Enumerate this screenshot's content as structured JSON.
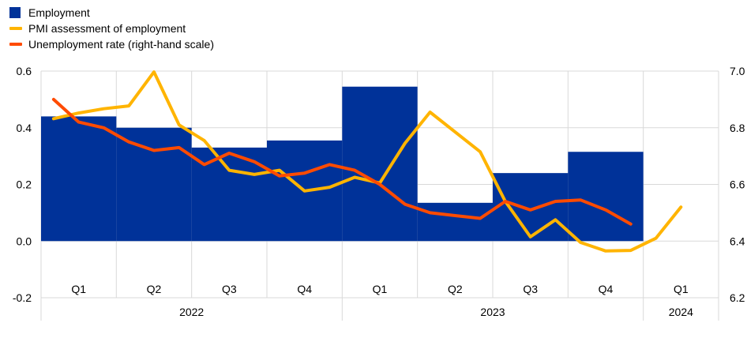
{
  "chart_data": {
    "type": "bar",
    "legend": {
      "placement": "top-left",
      "items": [
        "Employment",
        "PMI assessment of employment",
        "Unemployment rate (right-hand scale)"
      ]
    },
    "periods": [
      "Q1",
      "Q2",
      "Q3",
      "Q4",
      "Q1",
      "Q2",
      "Q3",
      "Q4",
      "Q1"
    ],
    "years": [
      {
        "label": "2022",
        "quarters": 4
      },
      {
        "label": "2023",
        "quarters": 4
      },
      {
        "label": "2024",
        "quarters": 1
      }
    ],
    "left_axis": {
      "ylim": [
        -0.2,
        0.6
      ],
      "ticks": [
        "-0.2",
        "0.0",
        "0.2",
        "0.4",
        "0.6"
      ]
    },
    "right_axis": {
      "ylim": [
        6.2,
        7.0
      ],
      "ticks": [
        "6.2",
        "6.4",
        "6.6",
        "6.8",
        "7.0"
      ]
    },
    "grid": true,
    "series": [
      {
        "name": "Employment",
        "kind": "bar",
        "axis": "left",
        "color": "#003299",
        "x": [
          "2022-Q1",
          "2022-Q2",
          "2022-Q3",
          "2022-Q4",
          "2023-Q1",
          "2023-Q2",
          "2023-Q3",
          "2023-Q4"
        ],
        "values": [
          0.44,
          0.4,
          0.33,
          0.355,
          0.545,
          0.135,
          0.24,
          0.315
        ]
      },
      {
        "name": "PMI assessment of employment",
        "kind": "line",
        "axis": "left",
        "color": "#FFB400",
        "x": [
          "2022-01",
          "2022-02",
          "2022-03",
          "2022-04",
          "2022-05",
          "2022-06",
          "2022-07",
          "2022-08",
          "2022-09",
          "2022-10",
          "2022-11",
          "2022-12",
          "2023-01",
          "2023-02",
          "2023-03",
          "2023-04",
          "2023-05",
          "2023-06",
          "2023-07",
          "2023-08",
          "2023-09",
          "2023-10",
          "2023-11",
          "2023-12",
          "2024-01",
          "2024-02"
        ],
        "values": [
          0.432,
          0.452,
          0.467,
          0.477,
          0.597,
          0.41,
          0.355,
          0.25,
          0.235,
          0.25,
          0.177,
          0.19,
          0.225,
          0.205,
          0.345,
          0.455,
          0.385,
          0.315,
          0.14,
          0.015,
          0.075,
          -0.005,
          -0.035,
          -0.033,
          0.01,
          0.12
        ]
      },
      {
        "name": "Unemployment rate (right-hand scale)",
        "kind": "line",
        "axis": "right",
        "color": "#FF4B00",
        "x": [
          "2022-01",
          "2022-02",
          "2022-03",
          "2022-04",
          "2022-05",
          "2022-06",
          "2022-07",
          "2022-08",
          "2022-09",
          "2022-10",
          "2022-11",
          "2022-12",
          "2023-01",
          "2023-02",
          "2023-03",
          "2023-04",
          "2023-05",
          "2023-06",
          "2023-07",
          "2023-08",
          "2023-09",
          "2023-10",
          "2023-11",
          "2023-12"
        ],
        "values": [
          6.9,
          6.82,
          6.8,
          6.75,
          6.72,
          6.73,
          6.67,
          6.71,
          6.68,
          6.63,
          6.64,
          6.67,
          6.65,
          6.6,
          6.53,
          6.5,
          6.49,
          6.48,
          6.54,
          6.51,
          6.54,
          6.545,
          6.51,
          6.46
        ]
      }
    ]
  }
}
